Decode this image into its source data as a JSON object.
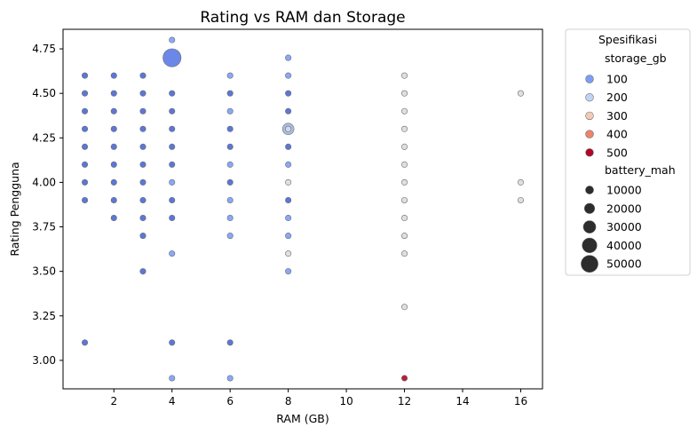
{
  "chart_data": {
    "type": "scatter",
    "title": "Rating vs RAM dan Storage",
    "xlabel": "RAM (GB)",
    "ylabel": "Rating Pengguna",
    "xlim": [
      0.25,
      16.75
    ],
    "ylim": [
      2.84,
      4.86
    ],
    "xticks": [
      2,
      4,
      6,
      8,
      10,
      12,
      14,
      16
    ],
    "yticks": [
      3.0,
      3.25,
      3.5,
      3.75,
      4.0,
      4.25,
      4.5,
      4.75
    ],
    "ytick_labels": [
      "3.00",
      "3.25",
      "3.50",
      "3.75",
      "4.00",
      "4.25",
      "4.50",
      "4.75"
    ],
    "grid": false,
    "legend": {
      "title": "Spesifikasi",
      "placement": "outside-right",
      "hue_title": "storage_gb",
      "hue_entries": [
        {
          "label": "100",
          "color": "#7b9ff9"
        },
        {
          "label": "200",
          "color": "#c0d4f5"
        },
        {
          "label": "300",
          "color": "#f2cbb7"
        },
        {
          "label": "400",
          "color": "#ee8468"
        },
        {
          "label": "500",
          "color": "#b40426"
        }
      ],
      "size_title": "battery_mah",
      "size_entries": [
        {
          "label": "10000",
          "size": 10000
        },
        {
          "label": "20000",
          "size": 20000
        },
        {
          "label": "30000",
          "size": 30000
        },
        {
          "label": "40000",
          "size": 40000
        },
        {
          "label": "50000",
          "size": 50000
        }
      ]
    },
    "points": [
      {
        "x": 1,
        "y": 4.6,
        "c": "#4a67d4",
        "s": 5000
      },
      {
        "x": 1,
        "y": 4.5,
        "c": "#4a67d4",
        "s": 5000
      },
      {
        "x": 1,
        "y": 4.4,
        "c": "#4a67d4",
        "s": 5000
      },
      {
        "x": 1,
        "y": 4.3,
        "c": "#4a67d4",
        "s": 5000
      },
      {
        "x": 1,
        "y": 4.2,
        "c": "#4a67d4",
        "s": 5000
      },
      {
        "x": 1,
        "y": 4.1,
        "c": "#4a67d4",
        "s": 5000
      },
      {
        "x": 1,
        "y": 4.0,
        "c": "#4a67d4",
        "s": 5000
      },
      {
        "x": 1,
        "y": 3.9,
        "c": "#4a67d4",
        "s": 5000
      },
      {
        "x": 1,
        "y": 3.1,
        "c": "#4a67d4",
        "s": 5000
      },
      {
        "x": 2,
        "y": 4.6,
        "c": "#4a67d4",
        "s": 5000
      },
      {
        "x": 2,
        "y": 4.5,
        "c": "#4a67d4",
        "s": 5000
      },
      {
        "x": 2,
        "y": 4.4,
        "c": "#4a67d4",
        "s": 5000
      },
      {
        "x": 2,
        "y": 4.3,
        "c": "#4a67d4",
        "s": 5000
      },
      {
        "x": 2,
        "y": 4.2,
        "c": "#4a67d4",
        "s": 5000
      },
      {
        "x": 2,
        "y": 4.1,
        "c": "#4a67d4",
        "s": 5000
      },
      {
        "x": 2,
        "y": 4.0,
        "c": "#4a67d4",
        "s": 5000
      },
      {
        "x": 2,
        "y": 3.9,
        "c": "#4a67d4",
        "s": 5000
      },
      {
        "x": 2,
        "y": 3.8,
        "c": "#4a67d4",
        "s": 5000
      },
      {
        "x": 3,
        "y": 4.6,
        "c": "#4a67d4",
        "s": 5000
      },
      {
        "x": 3,
        "y": 4.5,
        "c": "#4a67d4",
        "s": 5000
      },
      {
        "x": 3,
        "y": 4.4,
        "c": "#4a67d4",
        "s": 5000
      },
      {
        "x": 3,
        "y": 4.3,
        "c": "#4a67d4",
        "s": 5000
      },
      {
        "x": 3,
        "y": 4.2,
        "c": "#4a67d4",
        "s": 5000
      },
      {
        "x": 3,
        "y": 4.1,
        "c": "#4a67d4",
        "s": 5000
      },
      {
        "x": 3,
        "y": 4.0,
        "c": "#4a67d4",
        "s": 5000
      },
      {
        "x": 3,
        "y": 3.9,
        "c": "#4a67d4",
        "s": 5000
      },
      {
        "x": 3,
        "y": 3.8,
        "c": "#4a67d4",
        "s": 5000
      },
      {
        "x": 3,
        "y": 3.7,
        "c": "#4a67d4",
        "s": 5000
      },
      {
        "x": 3,
        "y": 3.5,
        "c": "#4a67d4",
        "s": 5000
      },
      {
        "x": 4,
        "y": 4.8,
        "c": "#7b9ff9",
        "s": 5000
      },
      {
        "x": 4,
        "y": 4.7,
        "c": "#5b7ae5",
        "s": 50000
      },
      {
        "x": 4,
        "y": 4.5,
        "c": "#4a67d4",
        "s": 5000
      },
      {
        "x": 4,
        "y": 4.4,
        "c": "#4a67d4",
        "s": 5000
      },
      {
        "x": 4,
        "y": 4.3,
        "c": "#4a67d4",
        "s": 5000
      },
      {
        "x": 4,
        "y": 4.2,
        "c": "#4a67d4",
        "s": 5000
      },
      {
        "x": 4,
        "y": 4.1,
        "c": "#4a67d4",
        "s": 5000
      },
      {
        "x": 4,
        "y": 4.0,
        "c": "#7b9ff9",
        "s": 5000
      },
      {
        "x": 4,
        "y": 3.9,
        "c": "#4a67d4",
        "s": 5000
      },
      {
        "x": 4,
        "y": 3.8,
        "c": "#4a67d4",
        "s": 5000
      },
      {
        "x": 4,
        "y": 3.6,
        "c": "#7b9ff9",
        "s": 5000
      },
      {
        "x": 4,
        "y": 3.1,
        "c": "#4a67d4",
        "s": 5000
      },
      {
        "x": 4,
        "y": 2.9,
        "c": "#7b9ff9",
        "s": 5000
      },
      {
        "x": 6,
        "y": 4.6,
        "c": "#7b9ff9",
        "s": 5000
      },
      {
        "x": 6,
        "y": 4.5,
        "c": "#4a67d4",
        "s": 5000
      },
      {
        "x": 6,
        "y": 4.4,
        "c": "#7b9ff9",
        "s": 5000
      },
      {
        "x": 6,
        "y": 4.3,
        "c": "#4a67d4",
        "s": 5000
      },
      {
        "x": 6,
        "y": 4.2,
        "c": "#4a67d4",
        "s": 5000
      },
      {
        "x": 6,
        "y": 4.1,
        "c": "#7b9ff9",
        "s": 5000
      },
      {
        "x": 6,
        "y": 4.0,
        "c": "#4a67d4",
        "s": 5000
      },
      {
        "x": 6,
        "y": 3.9,
        "c": "#7b9ff9",
        "s": 5000
      },
      {
        "x": 6,
        "y": 3.8,
        "c": "#7b9ff9",
        "s": 5000
      },
      {
        "x": 6,
        "y": 3.7,
        "c": "#7b9ff9",
        "s": 5000
      },
      {
        "x": 6,
        "y": 3.1,
        "c": "#4a67d4",
        "s": 5000
      },
      {
        "x": 6,
        "y": 2.9,
        "c": "#7b9ff9",
        "s": 5000
      },
      {
        "x": 8,
        "y": 4.7,
        "c": "#7b9ff9",
        "s": 5000
      },
      {
        "x": 8,
        "y": 4.6,
        "c": "#7b9ff9",
        "s": 5000
      },
      {
        "x": 8,
        "y": 4.5,
        "c": "#4a67d4",
        "s": 5000
      },
      {
        "x": 8,
        "y": 4.4,
        "c": "#4a67d4",
        "s": 5000
      },
      {
        "x": 8,
        "y": 4.3,
        "c": "#9eb6e8",
        "s": 20000
      },
      {
        "x": 8,
        "y": 4.3,
        "c": "#dcdcdc",
        "s": 5000
      },
      {
        "x": 8,
        "y": 4.2,
        "c": "#4a67d4",
        "s": 5000
      },
      {
        "x": 8,
        "y": 4.1,
        "c": "#7b9ff9",
        "s": 5000
      },
      {
        "x": 8,
        "y": 4.0,
        "c": "#dcdcdc",
        "s": 5000
      },
      {
        "x": 8,
        "y": 3.9,
        "c": "#4a67d4",
        "s": 5000
      },
      {
        "x": 8,
        "y": 3.8,
        "c": "#7b9ff9",
        "s": 5000
      },
      {
        "x": 8,
        "y": 3.7,
        "c": "#7b9ff9",
        "s": 5000
      },
      {
        "x": 8,
        "y": 3.6,
        "c": "#dcdcdc",
        "s": 5000
      },
      {
        "x": 8,
        "y": 3.5,
        "c": "#7b9ff9",
        "s": 5000
      },
      {
        "x": 12,
        "y": 4.6,
        "c": "#dcdcdc",
        "s": 5000
      },
      {
        "x": 12,
        "y": 4.5,
        "c": "#dcdcdc",
        "s": 5000
      },
      {
        "x": 12,
        "y": 4.4,
        "c": "#dcdcdc",
        "s": 5000
      },
      {
        "x": 12,
        "y": 4.3,
        "c": "#dcdcdc",
        "s": 5000
      },
      {
        "x": 12,
        "y": 4.2,
        "c": "#dcdcdc",
        "s": 5000
      },
      {
        "x": 12,
        "y": 4.1,
        "c": "#dcdcdc",
        "s": 5000
      },
      {
        "x": 12,
        "y": 4.0,
        "c": "#dcdcdc",
        "s": 5000
      },
      {
        "x": 12,
        "y": 3.9,
        "c": "#dcdcdc",
        "s": 5000
      },
      {
        "x": 12,
        "y": 3.8,
        "c": "#dcdcdc",
        "s": 5000
      },
      {
        "x": 12,
        "y": 3.7,
        "c": "#dcdcdc",
        "s": 5000
      },
      {
        "x": 12,
        "y": 3.6,
        "c": "#dcdcdc",
        "s": 5000
      },
      {
        "x": 12,
        "y": 3.3,
        "c": "#dcdcdc",
        "s": 5000
      },
      {
        "x": 12,
        "y": 2.9,
        "c": "#b40426",
        "s": 5000
      },
      {
        "x": 16,
        "y": 4.5,
        "c": "#dcdcdc",
        "s": 5000
      },
      {
        "x": 16,
        "y": 4.0,
        "c": "#dcdcdc",
        "s": 5000
      },
      {
        "x": 16,
        "y": 3.9,
        "c": "#dcdcdc",
        "s": 5000
      }
    ]
  }
}
